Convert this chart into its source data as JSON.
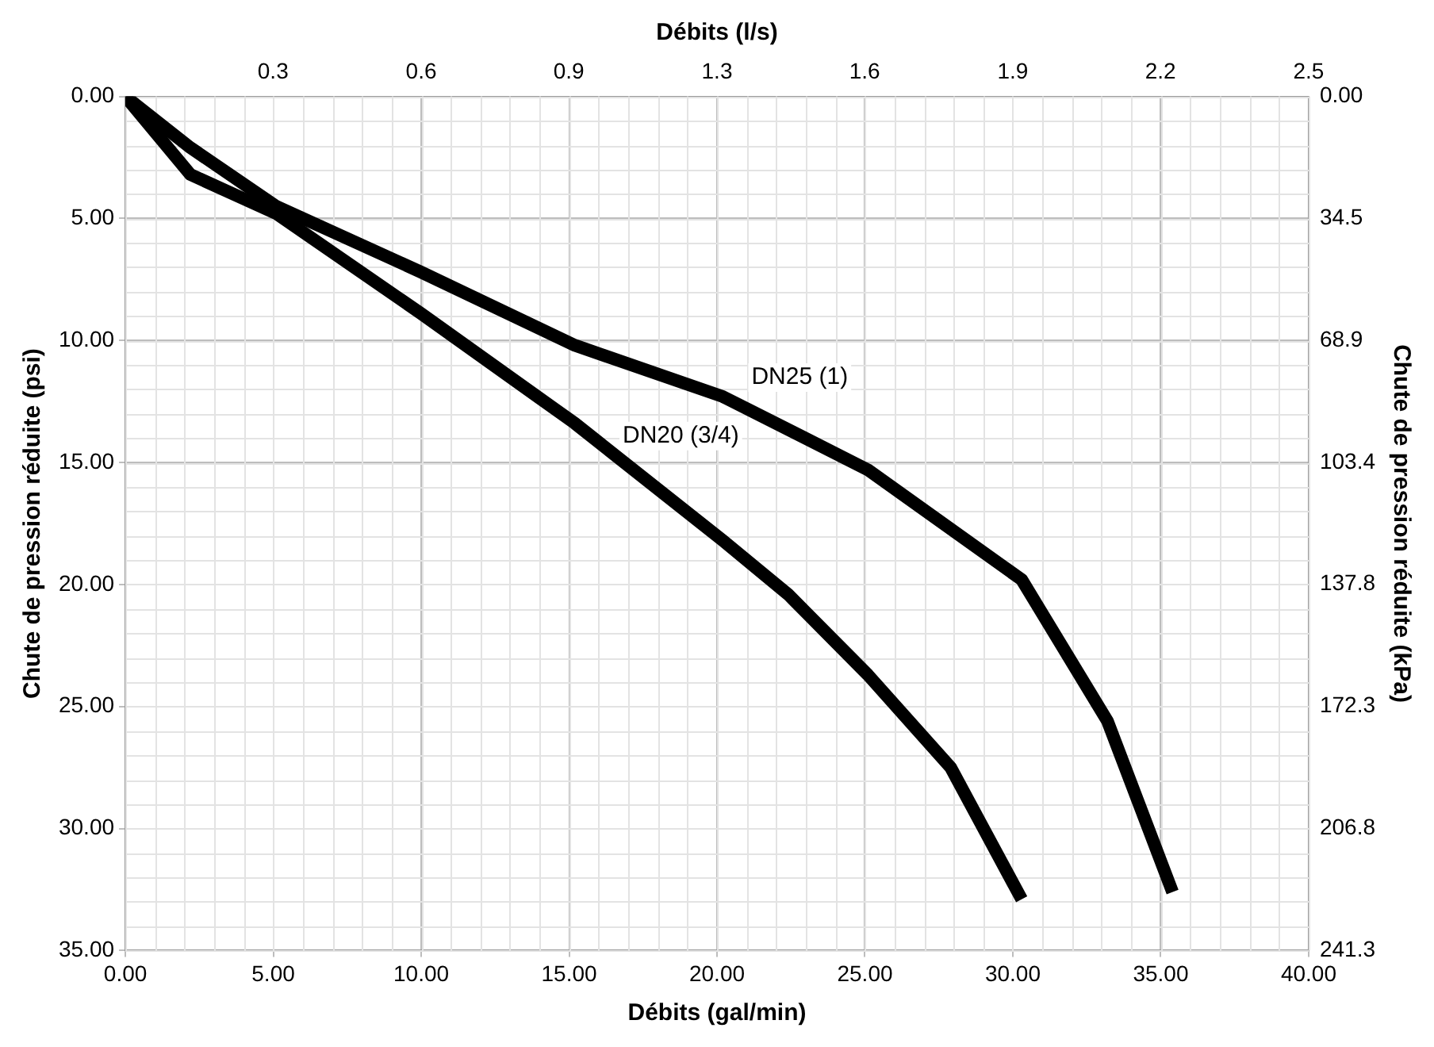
{
  "chart_data": {
    "type": "line",
    "xlabel": "Débits (gal/min)",
    "ylabel": "Chute de pression réduite (psi)",
    "x2label": "Débits (l/s)",
    "y2label": "Chute de pression réduite (kPa)",
    "xlim": [
      0,
      40
    ],
    "xticks": [
      {
        "value": 0,
        "label": "0.00"
      },
      {
        "value": 5,
        "label": "5.00"
      },
      {
        "value": 10,
        "label": "10.00"
      },
      {
        "value": 15,
        "label": "15.00"
      },
      {
        "value": 20,
        "label": "20.00"
      },
      {
        "value": 25,
        "label": "25.00"
      },
      {
        "value": 30,
        "label": "30.00"
      },
      {
        "value": 35,
        "label": "35.00"
      },
      {
        "value": 40,
        "label": "40.00"
      }
    ],
    "x2lim": [
      0,
      2.524
    ],
    "x2ticks": [
      {
        "value": 0.315,
        "label": "0.3"
      },
      {
        "value": 0.631,
        "label": "0.6"
      },
      {
        "value": 0.946,
        "label": "0.9"
      },
      {
        "value": 1.262,
        "label": "1.3"
      },
      {
        "value": 1.577,
        "label": "1.6"
      },
      {
        "value": 1.893,
        "label": "1.9"
      },
      {
        "value": 2.208,
        "label": "2.2"
      },
      {
        "value": 2.524,
        "label": "2.5"
      }
    ],
    "ylim": [
      35,
      0
    ],
    "yticks": [
      {
        "value": 0,
        "label": "0.00"
      },
      {
        "value": 5,
        "label": "5.00"
      },
      {
        "value": 10,
        "label": "10.00"
      },
      {
        "value": 15,
        "label": "15.00"
      },
      {
        "value": 20,
        "label": "20.00"
      },
      {
        "value": 25,
        "label": "25.00"
      },
      {
        "value": 30,
        "label": "30.00"
      },
      {
        "value": 35,
        "label": "35.00"
      }
    ],
    "y2lim": [
      241.3,
      0
    ],
    "y2ticks": [
      {
        "value": 0,
        "label": "0.00"
      },
      34.5,
      68.9,
      103.4,
      137.8,
      172.3,
      206.8,
      241.3
    ],
    "grid": true,
    "marker": "none",
    "line_style": "solid",
    "series": [
      {
        "name": "DN25 (1)",
        "color": "#000000",
        "x": [
          0,
          2.2,
          5.1,
          10,
          15.2,
          20.2,
          25.1,
          30.3,
          33.2,
          35.4
        ],
        "values": [
          0,
          2.1,
          4.5,
          7.2,
          10.2,
          12.3,
          15.3,
          19.8,
          25.6,
          32.6
        ]
      },
      {
        "name": "DN20 (3/4)",
        "color": "#000000",
        "x": [
          0,
          2.2,
          5.1,
          10,
          15.2,
          20.2,
          22.4,
          25.1,
          27.9,
          30.3
        ],
        "values": [
          0,
          3.2,
          4.8,
          8.9,
          13.4,
          18.2,
          20.4,
          23.7,
          27.5,
          32.9
        ]
      }
    ]
  }
}
